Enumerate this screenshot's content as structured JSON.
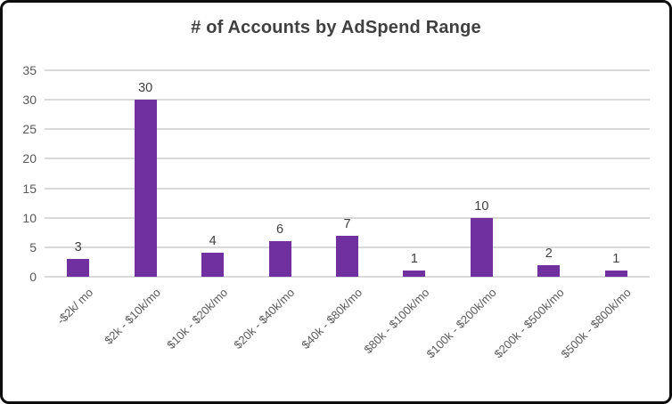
{
  "chart_data": {
    "type": "bar",
    "title": "# of Accounts by AdSpend Range",
    "categories": [
      "-$2k/ mo",
      "$2k - $10k/mo",
      "$10k - $20k/mo",
      "$20k - $40k/mo",
      "$40k - $80k/mo",
      "$80k - $100k/mo",
      "$100k - $200k/mo",
      "$200k - $500k/mo",
      "$500k - $800k/mo"
    ],
    "values": [
      3,
      30,
      4,
      6,
      7,
      1,
      10,
      2,
      1
    ],
    "xlabel": "",
    "ylabel": "",
    "ylim": [
      0,
      35
    ],
    "ytick_step": 5,
    "yticks": [
      "0",
      "5",
      "10",
      "15",
      "20",
      "25",
      "30",
      "35"
    ],
    "grid": true,
    "legend": "none",
    "data_labels_shown": true,
    "colors": {
      "bar": "#7030A0",
      "gridline": "#D9D9D9",
      "title": "#404040",
      "axis_labels": "#595959",
      "data_labels": "#404040",
      "background": "#FFFFFF",
      "frame_border": "#0D0D0D"
    }
  }
}
